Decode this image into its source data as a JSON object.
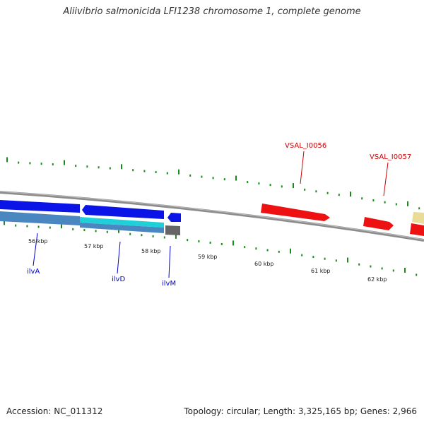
{
  "title": "Aliivibrio salmonicida LFI1238 chromosome 1, complete genome",
  "footer": {
    "accession": "Accession: NC_011312",
    "summary": "Topology: circular; Length: 3,325,165 bp; Genes: 2,966"
  },
  "colors": {
    "blue_gene": "#0a14e6",
    "steel_gene": "#4a86c0",
    "cyan_gene": "#20d0d8",
    "red_gene": "#ee1111",
    "gray_gene": "#666666",
    "yellow_gene": "#e8dc98",
    "tick_green": "#1a8a1a",
    "backbone": "#8c8c8c",
    "label_blue": "#0000cc",
    "label_red": "#cc0000"
  },
  "scale": {
    "labels": [
      "56 kbp",
      "57 kbp",
      "58 kbp",
      "59 kbp",
      "60 kbp",
      "61 kbp",
      "62 kbp"
    ]
  },
  "genes": {
    "ilvA": "ilvA",
    "ilvD": "ilvD",
    "ilvM": "ilvM",
    "vsal56": "VSAL_I0056",
    "vsal57": "VSAL_I0057"
  }
}
